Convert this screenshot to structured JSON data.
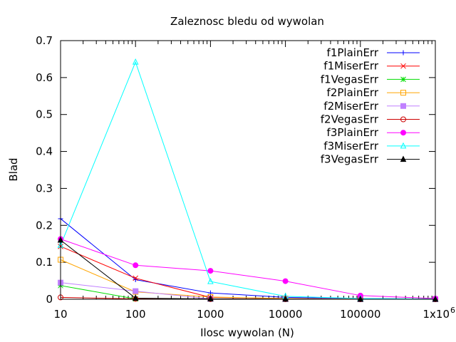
{
  "chart_data": {
    "type": "line",
    "title": "Zaleznosc bledu od wywolan",
    "xlabel": "Ilosc wywolan (N)",
    "ylabel": "Blad",
    "x_scale": "log",
    "x": [
      10,
      100,
      1000,
      10000,
      100000,
      1000000
    ],
    "xlim": [
      10,
      1000000
    ],
    "ylim": [
      0,
      0.7
    ],
    "x_ticks": [
      {
        "value": 10,
        "label": "10"
      },
      {
        "value": 100,
        "label": "100"
      },
      {
        "value": 1000,
        "label": "1000"
      },
      {
        "value": 10000,
        "label": "10000"
      },
      {
        "value": 100000,
        "label": "100000"
      },
      {
        "value": 1000000,
        "label": "1x10",
        "sup": "6"
      }
    ],
    "y_ticks": [
      {
        "value": 0,
        "label": "0"
      },
      {
        "value": 0.1,
        "label": "0.1"
      },
      {
        "value": 0.2,
        "label": "0.2"
      },
      {
        "value": 0.3,
        "label": "0.3"
      },
      {
        "value": 0.4,
        "label": "0.4"
      },
      {
        "value": 0.5,
        "label": "0.5"
      },
      {
        "value": 0.6,
        "label": "0.6"
      },
      {
        "value": 0.7,
        "label": "0.7"
      }
    ],
    "grid": false,
    "legend_position": "top-right",
    "series": [
      {
        "name": "f1PlainErr",
        "color": "#0000ff",
        "marker": "plus",
        "values": [
          0.218,
          0.053,
          0.017,
          0.005,
          0.002,
          0.0006
        ]
      },
      {
        "name": "f1MiserErr",
        "color": "#ff0000",
        "marker": "cross",
        "values": [
          0.143,
          0.057,
          0.005,
          0.002,
          0.0005,
          0.0002
        ]
      },
      {
        "name": "f1VegasErr",
        "color": "#00dd00",
        "marker": "star",
        "values": [
          0.037,
          0.001,
          0.0005,
          0.0002,
          0.0001,
          0.0001
        ]
      },
      {
        "name": "f2PlainErr",
        "color": "#ffa500",
        "marker": "square-open",
        "values": [
          0.107,
          0.02,
          0.006,
          0.002,
          0.0006,
          0.0002
        ]
      },
      {
        "name": "f2MiserErr",
        "color": "#c080ff",
        "marker": "square-filled",
        "values": [
          0.045,
          0.022,
          0.001,
          0.0005,
          0.0002,
          0.0001
        ]
      },
      {
        "name": "f2VegasErr",
        "color": "#cc0000",
        "marker": "circle-open",
        "values": [
          0.005,
          0.001,
          0.0005,
          0.0002,
          0.0001,
          0.0001
        ]
      },
      {
        "name": "f3PlainErr",
        "color": "#ff00ff",
        "marker": "circle-filled",
        "values": [
          0.163,
          0.092,
          0.077,
          0.049,
          0.01,
          0.002
        ]
      },
      {
        "name": "f3MiserErr",
        "color": "#00ffff",
        "marker": "triangle-open",
        "values": [
          0.146,
          0.642,
          0.048,
          0.008,
          0.002,
          0.0005
        ]
      },
      {
        "name": "f3VegasErr",
        "color": "#000000",
        "marker": "triangle-filled",
        "values": [
          0.16,
          0.003,
          0.001,
          0.0003,
          0.0001,
          0.0001
        ]
      }
    ]
  }
}
